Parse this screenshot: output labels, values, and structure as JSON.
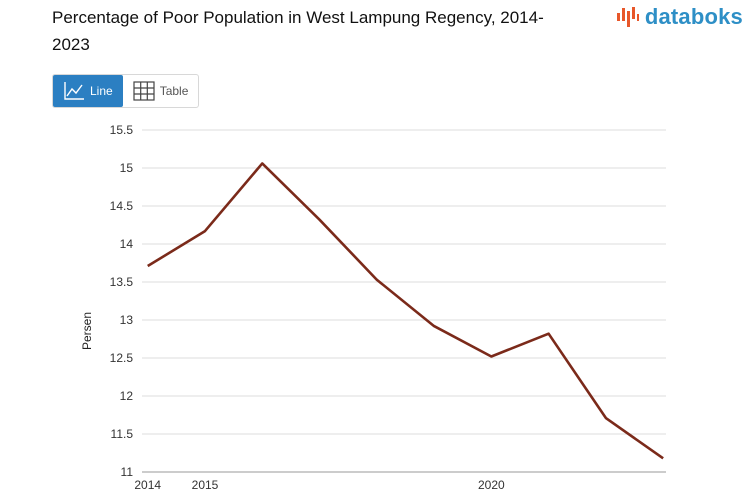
{
  "title": "Percentage of Poor Population in West Lampung Regency, 2014-2023",
  "brand": {
    "name": "databoks",
    "icon": "databoks-logo-icon",
    "color": "#2e8fc6",
    "mark_color": "#e8572a"
  },
  "toggle": {
    "line_label": "Line",
    "table_label": "Table",
    "active": "line",
    "active_color": "#2b7fc2"
  },
  "chart_data": {
    "type": "line",
    "title": "Percentage of Poor Population in West Lampung Regency, 2014-2023",
    "xlabel": "",
    "ylabel": "Persen",
    "x": [
      2014,
      2015,
      2016,
      2017,
      2018,
      2019,
      2020,
      2021,
      2022,
      2023
    ],
    "series": [
      {
        "values": [
          13.71,
          14.17,
          15.06,
          14.32,
          13.53,
          12.92,
          12.52,
          12.82,
          11.71,
          11.18
        ],
        "color": "#7b2a1a"
      }
    ],
    "ylim": [
      11,
      15.5
    ],
    "yticks": [
      "11",
      "11.5",
      "12",
      "12.5",
      "13",
      "13.5",
      "14",
      "14.5",
      "15",
      "15.5"
    ],
    "xticks": [
      "2014",
      "2015",
      "2020"
    ],
    "grid": true,
    "legend": "none"
  }
}
